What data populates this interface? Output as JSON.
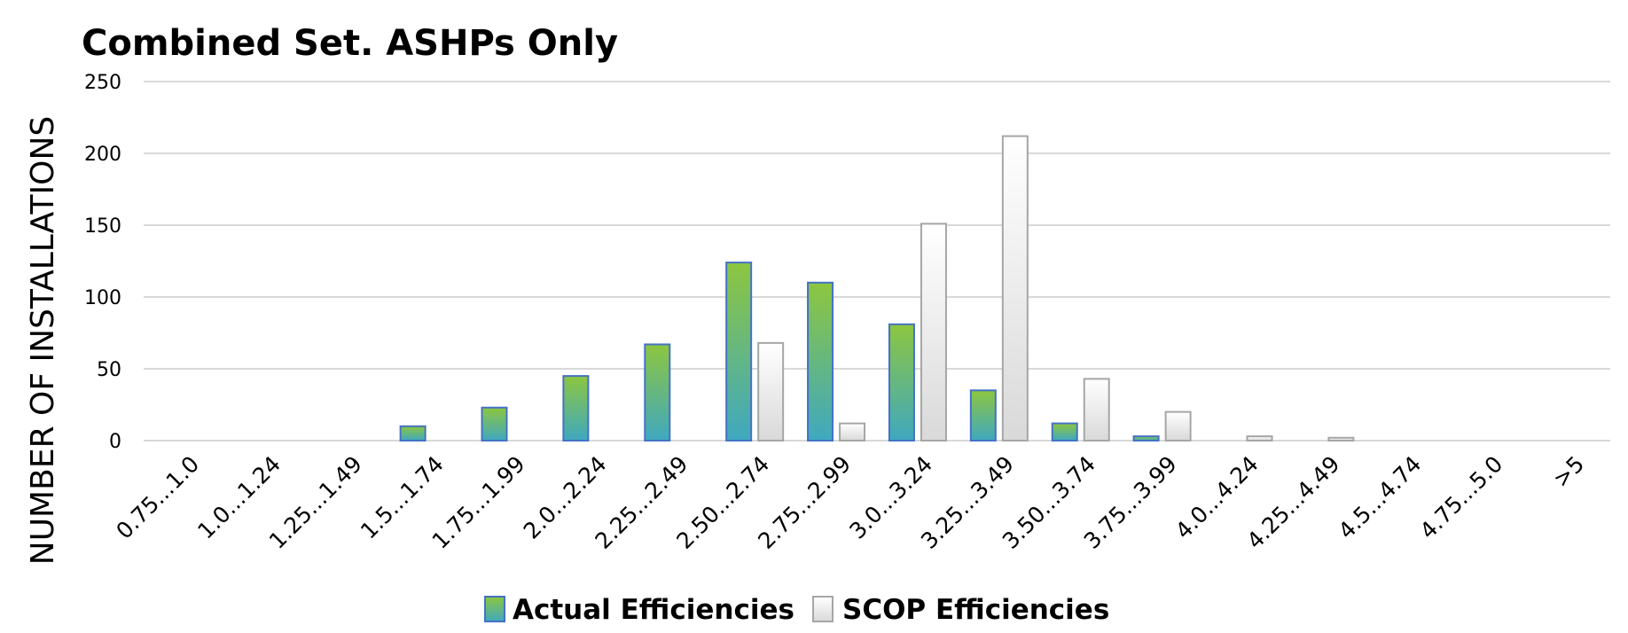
{
  "chart_data": {
    "type": "bar",
    "title": "Combined Set. ASHPs Only",
    "xlabel": "",
    "ylabel": "NUMBER OF INSTALLATIONS",
    "ylim": [
      0,
      250
    ],
    "yticks": [
      "0",
      "50",
      "100",
      "150",
      "200",
      "250"
    ],
    "grid": true,
    "legend_position": "bottom",
    "categories": [
      "0.75...1.0",
      "1.0...1.24",
      "1.25...1.49",
      "1.5...1.74",
      "1.75...1.99",
      "2.0...2.24",
      "2.25...2.49",
      "2.50...2.74",
      "2.75...2.99",
      "3.0...3.24",
      "3.25...3.49",
      "3.50...3.74",
      "3.75...3.99",
      "4.0...4.24",
      "4.25...4.49",
      "4.5...4.74",
      "4.75...5.0",
      ">5"
    ],
    "series": [
      {
        "name": "Actual Efficiencies",
        "colors": [
          "#8dc63f",
          "#3fa8c0"
        ],
        "border": "#4472c4",
        "values": [
          0,
          0,
          0,
          10,
          23,
          45,
          67,
          124,
          110,
          81,
          35,
          12,
          3,
          0,
          0,
          0,
          0,
          0
        ]
      },
      {
        "name": "SCOP Efficiencies",
        "colors": [
          "#ffffff",
          "#d9d9d9"
        ],
        "border": "#a6a6a6",
        "values": [
          0,
          0,
          0,
          0,
          0,
          0,
          0,
          68,
          12,
          151,
          212,
          43,
          20,
          3,
          2,
          0,
          0,
          0
        ]
      }
    ]
  }
}
